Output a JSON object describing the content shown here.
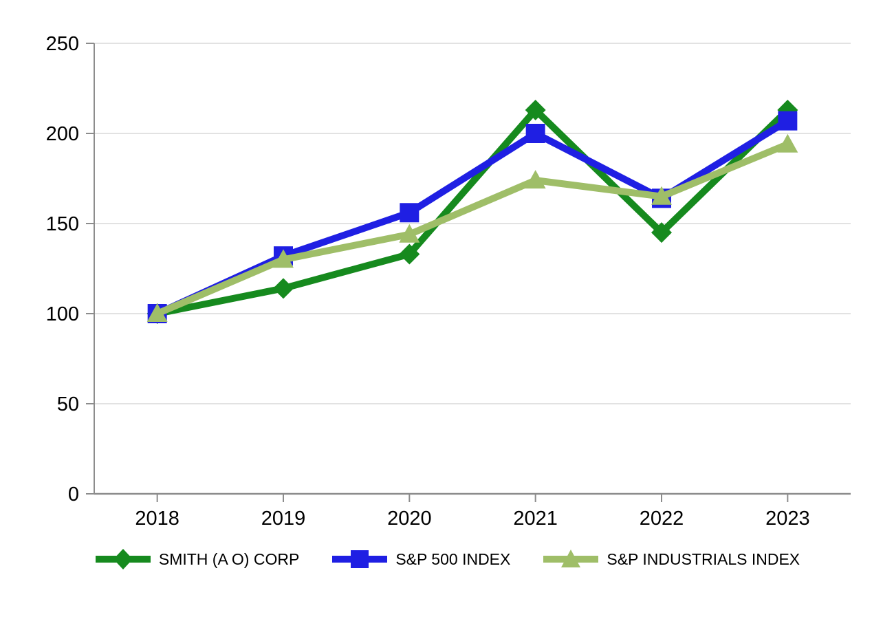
{
  "chart_data": {
    "type": "line",
    "title": "",
    "xlabel": "",
    "ylabel": "",
    "categories": [
      "2018",
      "2019",
      "2020",
      "2021",
      "2022",
      "2023"
    ],
    "series": [
      {
        "name": "SMITH (A O) CORP",
        "values": [
          100,
          114,
          133,
          213,
          145,
          213
        ],
        "color": "#168a1e",
        "marker": "diamond"
      },
      {
        "name": "S&P 500 INDEX",
        "values": [
          100,
          132,
          156,
          200,
          164,
          207
        ],
        "color": "#1f1fe3",
        "marker": "square"
      },
      {
        "name": "S&P INDUSTRIALS INDEX",
        "values": [
          100,
          130,
          144,
          174,
          165,
          194
        ],
        "color": "#9fbe68",
        "marker": "triangle"
      }
    ],
    "ylim": [
      0,
      250
    ],
    "ytick_interval": 50,
    "yticks": [
      "0",
      "50",
      "100",
      "150",
      "200",
      "250"
    ],
    "grid": "horizontal",
    "legend_position": "bottom",
    "colors": {
      "gridline": "#d9d9d9",
      "axis": "#8c8c8c",
      "label": "#000000",
      "background": "#ffffff"
    }
  }
}
